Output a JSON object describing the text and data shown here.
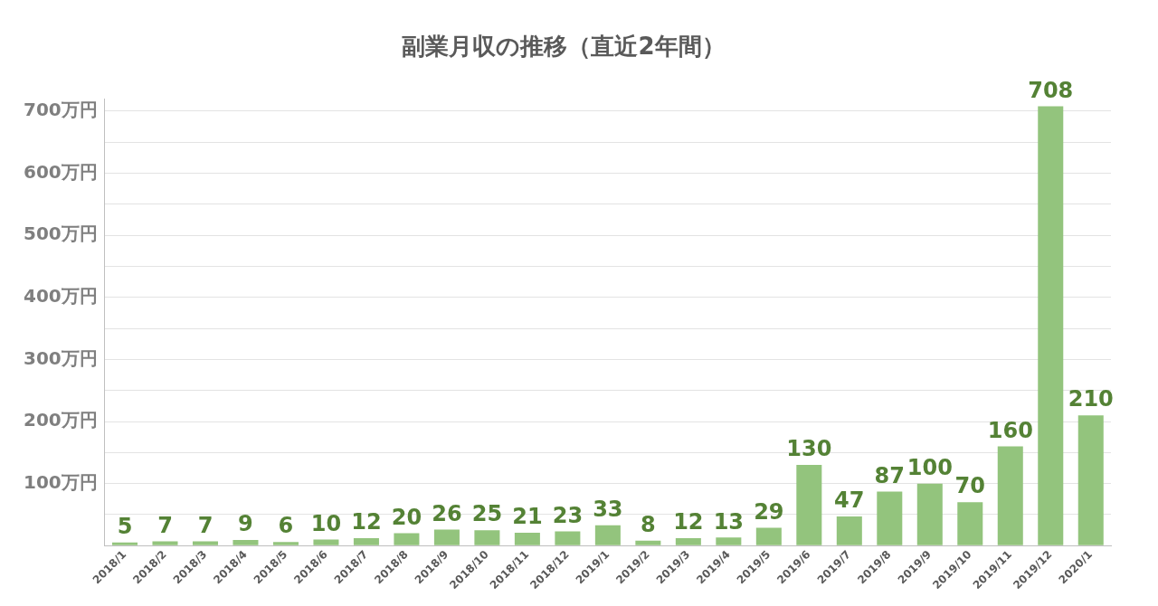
{
  "chart_data": {
    "type": "bar",
    "title": "副業月収の推移（直近2年間）",
    "categories": [
      "2018/1",
      "2018/2",
      "2018/3",
      "2018/4",
      "2018/5",
      "2018/6",
      "2018/7",
      "2018/8",
      "2018/9",
      "2018/10",
      "2018/11",
      "2018/12",
      "2019/1",
      "2019/2",
      "2019/3",
      "2019/4",
      "2019/5",
      "2019/6",
      "2019/7",
      "2019/8",
      "2019/9",
      "2019/10",
      "2019/11",
      "2019/12",
      "2020/1"
    ],
    "values": [
      5,
      7,
      7,
      9,
      6,
      10,
      12,
      20,
      26,
      25,
      21,
      23,
      33,
      8,
      12,
      13,
      29,
      130,
      47,
      87,
      100,
      70,
      160,
      708,
      210
    ],
    "color": "#93c47d",
    "ylim": [
      0,
      720
    ],
    "yticks": [
      {
        "value": 0,
        "label": null
      },
      {
        "value": 50,
        "label": null
      },
      {
        "value": 100,
        "label": "100万円"
      },
      {
        "value": 150,
        "label": null
      },
      {
        "value": 200,
        "label": "200万円"
      },
      {
        "value": 250,
        "label": null
      },
      {
        "value": 300,
        "label": "300万円"
      },
      {
        "value": 350,
        "label": null
      },
      {
        "value": 400,
        "label": "400万円"
      },
      {
        "value": 450,
        "label": null
      },
      {
        "value": 500,
        "label": "500万円"
      },
      {
        "value": 550,
        "label": null
      },
      {
        "value": 600,
        "label": "600万円"
      },
      {
        "value": 650,
        "label": null
      },
      {
        "value": 700,
        "label": "700万円"
      }
    ],
    "grid": "y",
    "data_labels": true,
    "legend": false
  }
}
